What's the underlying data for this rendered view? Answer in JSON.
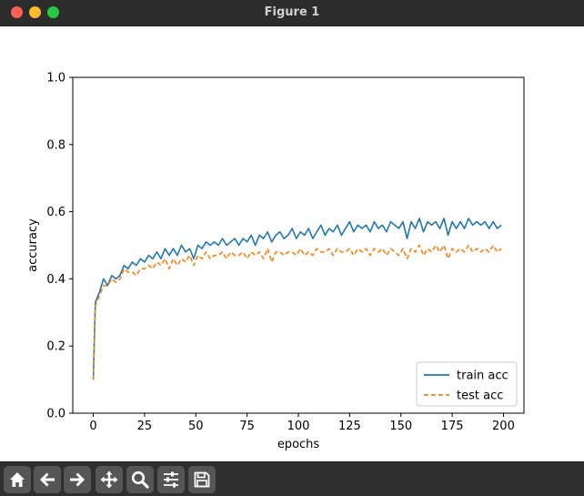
{
  "window": {
    "title": "Figure 1"
  },
  "toolbar": {
    "buttons": [
      {
        "icon": "home-icon"
      },
      {
        "icon": "back-arrow-icon"
      },
      {
        "icon": "forward-arrow-icon"
      },
      {
        "icon": "pan-icon"
      },
      {
        "icon": "zoom-icon"
      },
      {
        "icon": "configure-subplots-icon"
      },
      {
        "icon": "save-icon"
      }
    ]
  },
  "chart_data": {
    "type": "line",
    "title": "",
    "xlabel": "epochs",
    "ylabel": "accuracy",
    "xlim": [
      -10,
      210
    ],
    "ylim": [
      0.0,
      1.0
    ],
    "xticks": [
      0,
      25,
      50,
      75,
      100,
      125,
      150,
      175,
      200
    ],
    "xtick_labels": [
      "0",
      "25",
      "50",
      "75",
      "100",
      "125",
      "150",
      "175",
      "200"
    ],
    "yticks": [
      0.0,
      0.2,
      0.4,
      0.6,
      0.8,
      1.0
    ],
    "ytick_labels": [
      "0.0",
      "0.2",
      "0.4",
      "0.6",
      "0.8",
      "1.0"
    ],
    "legend": {
      "position": "lower-right"
    },
    "grid": false,
    "series": [
      {
        "name": "train acc",
        "color": "#1f77b4",
        "style": "solid",
        "x": [
          0,
          1,
          3,
          5,
          7,
          9,
          11,
          13,
          15,
          17,
          19,
          21,
          23,
          25,
          27,
          29,
          31,
          33,
          35,
          37,
          39,
          41,
          43,
          45,
          47,
          49,
          51,
          53,
          55,
          57,
          59,
          61,
          63,
          65,
          67,
          69,
          71,
          73,
          75,
          77,
          79,
          81,
          83,
          85,
          87,
          89,
          91,
          93,
          95,
          97,
          99,
          101,
          103,
          105,
          107,
          109,
          111,
          113,
          115,
          117,
          119,
          121,
          123,
          125,
          127,
          129,
          131,
          133,
          135,
          137,
          139,
          141,
          143,
          145,
          147,
          149,
          151,
          153,
          155,
          157,
          159,
          161,
          163,
          165,
          167,
          169,
          171,
          173,
          175,
          177,
          179,
          181,
          183,
          185,
          187,
          189,
          191,
          193,
          195,
          197,
          199
        ],
        "values": [
          0.1,
          0.33,
          0.36,
          0.4,
          0.38,
          0.41,
          0.4,
          0.41,
          0.44,
          0.43,
          0.45,
          0.44,
          0.46,
          0.45,
          0.47,
          0.46,
          0.48,
          0.46,
          0.49,
          0.47,
          0.49,
          0.47,
          0.5,
          0.48,
          0.49,
          0.46,
          0.5,
          0.49,
          0.51,
          0.5,
          0.51,
          0.5,
          0.52,
          0.5,
          0.51,
          0.52,
          0.5,
          0.52,
          0.51,
          0.53,
          0.5,
          0.53,
          0.52,
          0.54,
          0.51,
          0.53,
          0.54,
          0.52,
          0.53,
          0.55,
          0.52,
          0.54,
          0.53,
          0.55,
          0.52,
          0.54,
          0.56,
          0.53,
          0.55,
          0.54,
          0.56,
          0.53,
          0.55,
          0.57,
          0.54,
          0.56,
          0.55,
          0.56,
          0.54,
          0.57,
          0.55,
          0.56,
          0.54,
          0.57,
          0.56,
          0.55,
          0.57,
          0.52,
          0.57,
          0.55,
          0.58,
          0.54,
          0.57,
          0.56,
          0.57,
          0.55,
          0.58,
          0.53,
          0.57,
          0.55,
          0.57,
          0.55,
          0.58,
          0.56,
          0.57,
          0.56,
          0.57,
          0.55,
          0.57,
          0.55,
          0.56
        ]
      },
      {
        "name": "test acc",
        "color": "#ff7f0e",
        "style": "dashed",
        "x": [
          0,
          1,
          3,
          5,
          7,
          9,
          11,
          13,
          15,
          17,
          19,
          21,
          23,
          25,
          27,
          29,
          31,
          33,
          35,
          37,
          39,
          41,
          43,
          45,
          47,
          49,
          51,
          53,
          55,
          57,
          59,
          61,
          63,
          65,
          67,
          69,
          71,
          73,
          75,
          77,
          79,
          81,
          83,
          85,
          87,
          89,
          91,
          93,
          95,
          97,
          99,
          101,
          103,
          105,
          107,
          109,
          111,
          113,
          115,
          117,
          119,
          121,
          123,
          125,
          127,
          129,
          131,
          133,
          135,
          137,
          139,
          141,
          143,
          145,
          147,
          149,
          151,
          153,
          155,
          157,
          159,
          161,
          163,
          165,
          167,
          169,
          171,
          173,
          175,
          177,
          179,
          181,
          183,
          185,
          187,
          189,
          191,
          193,
          195,
          197,
          199
        ],
        "values": [
          0.1,
          0.32,
          0.35,
          0.38,
          0.38,
          0.4,
          0.39,
          0.4,
          0.43,
          0.42,
          0.42,
          0.41,
          0.43,
          0.43,
          0.44,
          0.43,
          0.45,
          0.44,
          0.46,
          0.43,
          0.46,
          0.44,
          0.46,
          0.45,
          0.47,
          0.44,
          0.47,
          0.46,
          0.48,
          0.46,
          0.47,
          0.47,
          0.48,
          0.46,
          0.48,
          0.47,
          0.47,
          0.48,
          0.46,
          0.48,
          0.47,
          0.48,
          0.46,
          0.49,
          0.45,
          0.48,
          0.48,
          0.47,
          0.48,
          0.48,
          0.47,
          0.49,
          0.47,
          0.48,
          0.47,
          0.49,
          0.48,
          0.48,
          0.49,
          0.47,
          0.49,
          0.48,
          0.48,
          0.49,
          0.47,
          0.49,
          0.48,
          0.49,
          0.47,
          0.49,
          0.48,
          0.49,
          0.47,
          0.49,
          0.48,
          0.47,
          0.49,
          0.46,
          0.49,
          0.48,
          0.5,
          0.47,
          0.49,
          0.48,
          0.5,
          0.48,
          0.5,
          0.46,
          0.49,
          0.48,
          0.49,
          0.48,
          0.5,
          0.48,
          0.49,
          0.48,
          0.49,
          0.48,
          0.5,
          0.48,
          0.49
        ]
      }
    ]
  }
}
